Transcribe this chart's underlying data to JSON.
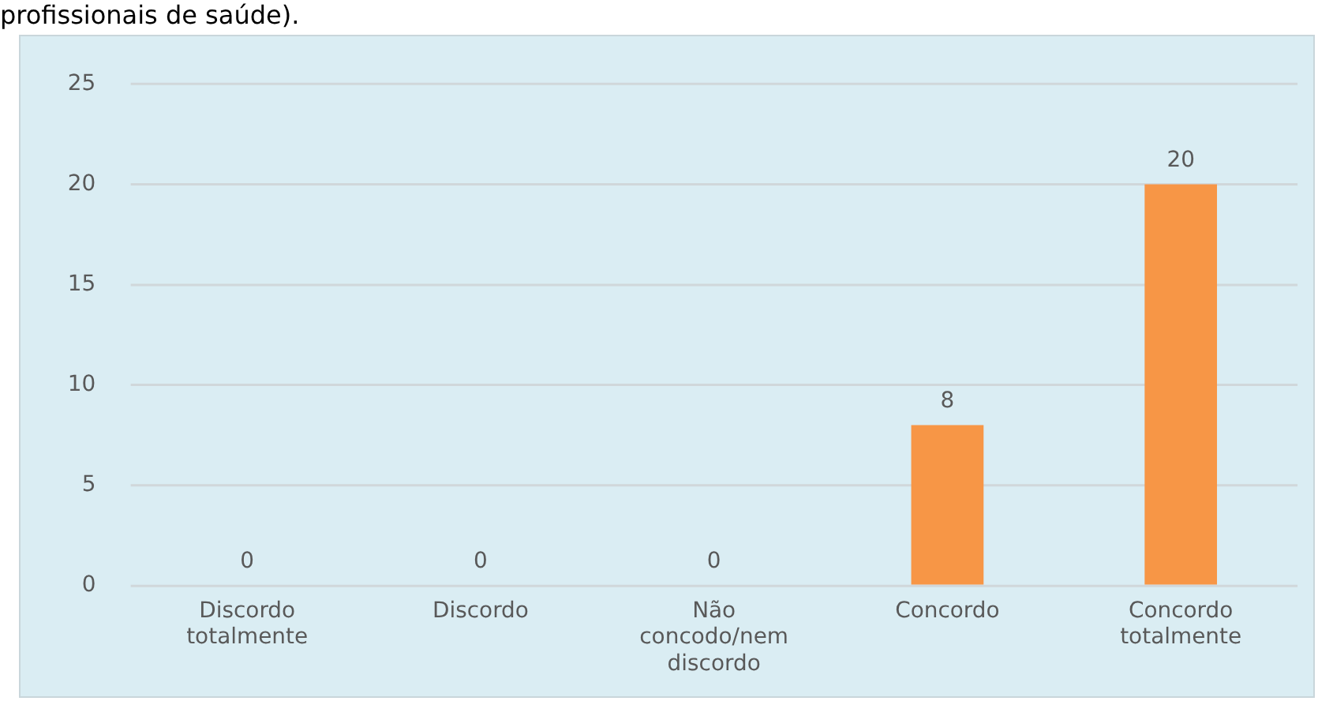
{
  "chart_data": {
    "type": "bar",
    "annotations": [
      "profissionais de saúde)."
    ],
    "categories": [
      "Discordo totalmente",
      "Discordo",
      "Não concodo/nem discordo",
      "Concordo",
      "Concordo totalmente"
    ],
    "values": [
      0,
      0,
      0,
      8,
      20
    ],
    "color": "#f79646",
    "ylim": [
      0,
      25
    ],
    "yticks": [
      0,
      5,
      10,
      15,
      20,
      25
    ],
    "grid": "y",
    "data_labels": true,
    "legend": false
  }
}
